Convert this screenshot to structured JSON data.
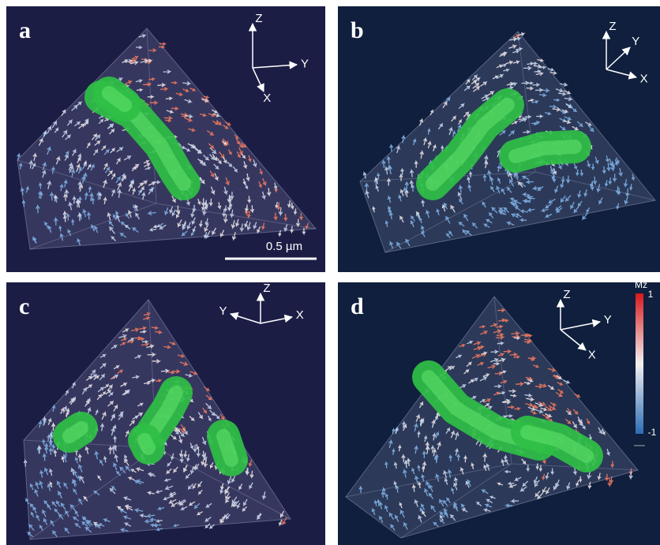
{
  "panels": [
    {
      "label": "a",
      "axes": {
        "x": "X",
        "y": "Y",
        "z": "Z"
      },
      "scale_bar": "0.5 µm"
    },
    {
      "label": "b",
      "axes": {
        "x": "X",
        "y": "Y",
        "z": "Z"
      }
    },
    {
      "label": "c",
      "axes": {
        "x": "X",
        "y": "Y",
        "z": "Z"
      }
    },
    {
      "label": "d",
      "axes": {
        "x": "X",
        "y": "Y",
        "z": "Z"
      }
    }
  ],
  "colorbar": {
    "title": "Mz",
    "max_label": "1",
    "min_label": "-1"
  }
}
